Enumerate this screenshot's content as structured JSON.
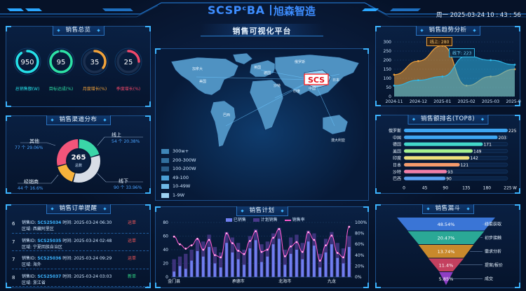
{
  "header": {
    "logo_text": "SCSPᶜBA",
    "brand_cn": "旭森智造",
    "datetime": "周一 2025-03-24 10 : 43 : 56",
    "center_title": "销售可视化平台"
  },
  "overview": {
    "title": "销售总览",
    "rings": [
      {
        "value": "950",
        "label": "总销售额(W)",
        "color": "#25e0e8",
        "fill": 0.9
      },
      {
        "value": "95",
        "label": "目标达成(%)",
        "color": "#2de2a6",
        "fill": 0.95
      },
      {
        "value": "35",
        "label": "月度增长(%)",
        "color": "#f2a33a",
        "fill": 0.35
      },
      {
        "value": "25",
        "label": "季度增长(%)",
        "color": "#f0486a",
        "fill": 0.25
      }
    ]
  },
  "channels": {
    "title": "销售渠道分布",
    "center_value": "265",
    "center_label": "总数",
    "items": [
      {
        "name": "其他",
        "detail": "77 个 29.06%",
        "value": 77,
        "color": "#f2557a"
      },
      {
        "name": "线上",
        "detail": "54 个 20.38%",
        "value": 54,
        "color": "#3ad6a8"
      },
      {
        "name": "线下",
        "detail": "90 个 33.96%",
        "value": 90,
        "color": "#d8dde6"
      },
      {
        "name": "经销商",
        "detail": "44 个 16.6%",
        "value": 44,
        "color": "#f7b23b"
      }
    ]
  },
  "orders": {
    "title": "销售订单提醒",
    "list": [
      {
        "idx": "6",
        "order_label": "销售ID:",
        "order_id": "SCS25034",
        "time_label": "时间:",
        "time": "2025-03-24 06:30",
        "status": "运单",
        "status_color": "#ff5a5a",
        "area_label": "区域:",
        "area": "西藏阿里区"
      },
      {
        "idx": "7",
        "order_label": "销售ID:",
        "order_id": "SCS25035",
        "time_label": "时间:",
        "time": "2025-03-24 02:48",
        "status": "运单",
        "status_color": "#ff5a5a",
        "area_label": "区域:",
        "area": "宁夏回族自治区"
      },
      {
        "idx": "7",
        "order_label": "销售ID:",
        "order_id": "SCS25036",
        "time_label": "时间:",
        "time": "2025-03-24 09:29",
        "status": "运单",
        "status_color": "#ff5a5a",
        "area_label": "区域:",
        "area": "海外"
      },
      {
        "idx": "8",
        "order_label": "销售ID:",
        "order_id": "SCS25037",
        "time_label": "时间:",
        "time": "2025-03-24 03:03",
        "status": "新单",
        "status_color": "#33e08a",
        "area_label": "区域:",
        "area": "浙江省"
      }
    ]
  },
  "map": {
    "marker_label": "SCS",
    "cities": [
      "加拿大",
      "美国",
      "巴西",
      "英国",
      "德国",
      "俄罗斯",
      "沙特",
      "印度",
      "中国",
      "日本",
      "澳大利亚"
    ],
    "legend": [
      {
        "label": "300w+",
        "color": "#3f86b8"
      },
      {
        "label": "200-300W",
        "color": "#326f9e"
      },
      {
        "label": "100-200W",
        "color": "#2a5c88"
      },
      {
        "label": "49-100",
        "color": "#4c9fd6"
      },
      {
        "label": "10-49W",
        "color": "#6fb8e6"
      },
      {
        "label": "1-9W",
        "color": "#9dd2f2"
      }
    ]
  },
  "trend": {
    "title": "销售趋势分析",
    "tooltip_high": "线上: 280",
    "tooltip_low": "线下: 223"
  },
  "ranking": {
    "title": "销售额排名(TOP8)"
  },
  "plan": {
    "title": "销售计划",
    "legend": [
      "已销售",
      "计划销售",
      "销售率"
    ]
  },
  "funnel": {
    "title": "销售漏斗",
    "stages": [
      {
        "pct": "48.54%",
        "label": "线索获取",
        "color": "#3a75d6",
        "value": 48.54
      },
      {
        "pct": "20.47%",
        "label": "初步接触",
        "color": "#2aa896",
        "value": 20.47
      },
      {
        "pct": "13.74%",
        "label": "需求分析",
        "color": "#c9892c",
        "value": 13.74
      },
      {
        "pct": "11.4%",
        "label": "提案/报价",
        "color": "#c4405f",
        "value": 11.4
      },
      {
        "pct": "5.85%",
        "label": "成交",
        "color": "#8f3ec4",
        "value": 5.85
      }
    ]
  },
  "chart_data": [
    {
      "type": "area",
      "title": "销售趋势分析",
      "x": [
        "2024-11",
        "2024-12",
        "2025-01",
        "2025-02",
        "2025-03",
        "2025-04"
      ],
      "series": [
        {
          "name": "线上",
          "values": [
            120,
            195,
            280,
            60,
            110,
            150
          ],
          "color": "#f0a13a"
        },
        {
          "name": "线下",
          "values": [
            60,
            90,
            110,
            223,
            200,
            175
          ],
          "color": "#2fb7e8"
        }
      ],
      "ylim": [
        0,
        300
      ],
      "yticks": [
        0,
        50,
        100,
        150,
        200,
        250,
        300
      ]
    },
    {
      "type": "bar",
      "title": "销售额排名(TOP8)",
      "categories": [
        "俄罗斯",
        "中国",
        "德国",
        "美国",
        "印度",
        "日本",
        "沙特",
        "巴西"
      ],
      "values": [
        225,
        203,
        171,
        149,
        142,
        121,
        93,
        90
      ],
      "colors": [
        "#3ea6f2",
        "#3ea6f2",
        "#43d8c9",
        "#a7f08f",
        "#f0e07a",
        "#f59b6b",
        "#f07ea7",
        "#5aa0f0"
      ],
      "xlim": [
        0,
        225
      ],
      "xticks": [
        "0",
        "45",
        "90",
        "135",
        "180",
        "225"
      ],
      "xunit": "W"
    },
    {
      "type": "bar",
      "title": "销售计划",
      "categories": [
        "金门县",
        "",
        "",
        "",
        "",
        "",
        "",
        "",
        "",
        "",
        "",
        "承德市",
        "",
        "",
        "",
        "",
        "",
        "",
        "",
        "北海市",
        "",
        "",
        "",
        "",
        "",
        "",
        "",
        "九龙",
        "",
        "",
        ""
      ],
      "axis_labels": [
        "金门县",
        "承德市",
        "北海市",
        "九龙"
      ],
      "series": [
        {
          "name": "已销售",
          "values": [
            8,
            16,
            12,
            24,
            38,
            30,
            44,
            20,
            14,
            50,
            36,
            26,
            18,
            42,
            54,
            22,
            30,
            48,
            56,
            18,
            34,
            40,
            26,
            52,
            46,
            14,
            36,
            48,
            28,
            20,
            44
          ],
          "color": "#6f7ff0"
        },
        {
          "name": "计划销售",
          "values": [
            26,
            30,
            34,
            40,
            56,
            52,
            62,
            44,
            36,
            66,
            58,
            50,
            40,
            60,
            70,
            48,
            52,
            64,
            72,
            40,
            58,
            62,
            50,
            68,
            64,
            34,
            56,
            66,
            50,
            42,
            60
          ],
          "color": "#4a3a8c"
        },
        {
          "name": "销售率",
          "values": [
            74,
            60,
            52,
            58,
            70,
            50,
            68,
            40,
            36,
            80,
            62,
            48,
            42,
            66,
            84,
            46,
            50,
            72,
            88,
            38,
            56,
            64,
            46,
            82,
            68,
            30,
            58,
            76,
            44,
            36,
            92
          ],
          "color": "#ff5ad1"
        }
      ],
      "ylim": [
        0,
        80
      ],
      "yticks": [
        0,
        20,
        40,
        60,
        80
      ],
      "y2ticks": [
        "0%",
        "20%",
        "40%",
        "60%",
        "80%",
        "100%"
      ]
    }
  ]
}
